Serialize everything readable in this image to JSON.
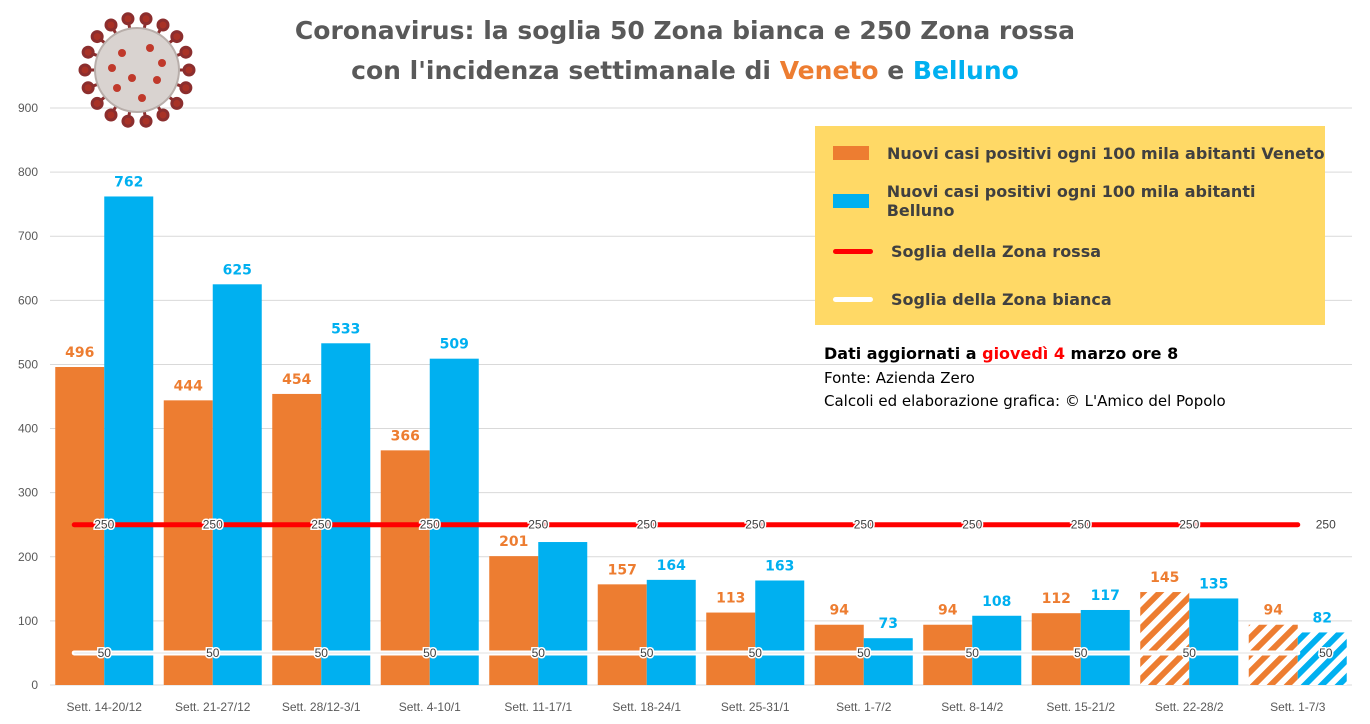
{
  "title": {
    "line1": "Coronavirus: la soglia 50 Zona bianca e 250 Zona rossa",
    "line2_prefix": "con l'incidenza settimanale di ",
    "line2_veneto": "Veneto",
    "line2_mid": " e ",
    "line2_belluno": "Belluno"
  },
  "legend": {
    "veneto": "Nuovi casi positivi ogni 100 mila abitanti Veneto",
    "belluno": "Nuovi casi positivi ogni 100 mila abitanti Belluno",
    "rossa": "Soglia della Zona rossa",
    "bianca": "Soglia della Zona bianca"
  },
  "notes": {
    "updated_prefix": "Dati aggiornati a ",
    "updated_day": "giovedì 4",
    "updated_suffix": " marzo ore 8",
    "source": "Fonte: Azienda Zero",
    "credit": "Calcoli ed elaborazione grafica: © L'Amico del Popolo"
  },
  "colors": {
    "veneto": "#ed7d31",
    "belluno": "#00b0f0",
    "rossa": "#ff0000",
    "bianca": "#ffffff",
    "title_veneto": "#ed7d31",
    "title_belluno": "#00b0f0",
    "legend_bg": "#ffd966",
    "updated_day": "#ff0000"
  },
  "icons": {
    "virus": "coronavirus-illustration"
  },
  "chart_data": {
    "type": "bar",
    "ylim": [
      0,
      900
    ],
    "yticks": [
      0,
      100,
      200,
      300,
      400,
      500,
      600,
      700,
      800,
      900
    ],
    "grid": true,
    "categories": [
      "Sett. 14-20/12",
      "Sett. 21-27/12",
      "Sett. 28/12-3/1",
      "Sett. 4-10/1",
      "Sett. 11-17/1",
      "Sett. 18-24/1",
      "Sett. 25-31/1",
      "Sett. 1-7/2",
      "Sett. 8-14/2",
      "Sett. 15-21/2",
      "Sett. 22-28/2",
      "Sett. 1-7/3"
    ],
    "series": [
      {
        "name": "Nuovi casi positivi ogni 100 mila abitanti Veneto",
        "values": [
          496,
          444,
          454,
          366,
          201,
          157,
          113,
          94,
          94,
          112,
          145,
          94
        ],
        "partial": [
          false,
          false,
          false,
          false,
          false,
          false,
          false,
          false,
          false,
          false,
          true,
          true
        ]
      },
      {
        "name": "Nuovi casi positivi ogni 100 mila abitanti Belluno",
        "values": [
          762,
          625,
          533,
          509,
          223,
          164,
          163,
          73,
          108,
          117,
          135,
          82
        ],
        "labels": [
          "762",
          "625",
          "533",
          "509",
          "",
          "164",
          "163",
          "73",
          "108",
          "117",
          "135",
          "82"
        ],
        "partial": [
          false,
          false,
          false,
          false,
          false,
          false,
          false,
          false,
          false,
          false,
          false,
          true
        ]
      }
    ],
    "thresholds": [
      {
        "name": "Soglia della Zona rossa",
        "value": 250,
        "label": "250"
      },
      {
        "name": "Soglia della Zona bianca",
        "value": 50,
        "label": "50"
      }
    ]
  }
}
